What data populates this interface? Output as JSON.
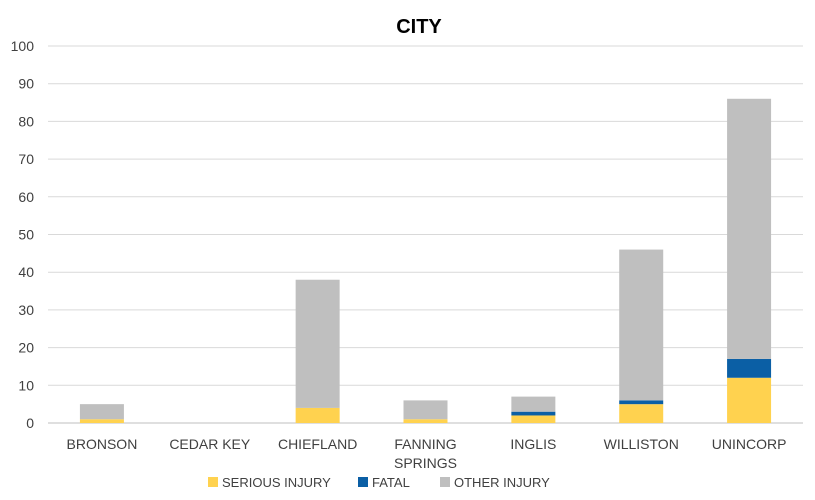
{
  "chart_data": {
    "type": "bar",
    "stacked": true,
    "title": "CITY",
    "categories": [
      [
        "BRONSON"
      ],
      [
        "CEDAR KEY"
      ],
      [
        "CHIEFLAND"
      ],
      [
        "FANNING",
        "SPRINGS"
      ],
      [
        "INGLIS"
      ],
      [
        "WILLISTON"
      ],
      [
        "UNINCORP"
      ]
    ],
    "series": [
      {
        "name": "SERIOUS INJURY",
        "color": "#FFD24F",
        "values": [
          1,
          0,
          4,
          1,
          2,
          5,
          12
        ]
      },
      {
        "name": "FATAL",
        "color": "#0B5FA5",
        "values": [
          0,
          0,
          0,
          0,
          1,
          1,
          5
        ]
      },
      {
        "name": "OTHER INJURY",
        "color": "#BFBFBF",
        "values": [
          4,
          0,
          34,
          5,
          4,
          40,
          69
        ]
      }
    ],
    "ylim": [
      0,
      100
    ],
    "yticks": [
      "0",
      "10",
      "20",
      "30",
      "40",
      "50",
      "60",
      "70",
      "80",
      "90",
      "100"
    ],
    "grid": true,
    "legend": "bottom"
  }
}
